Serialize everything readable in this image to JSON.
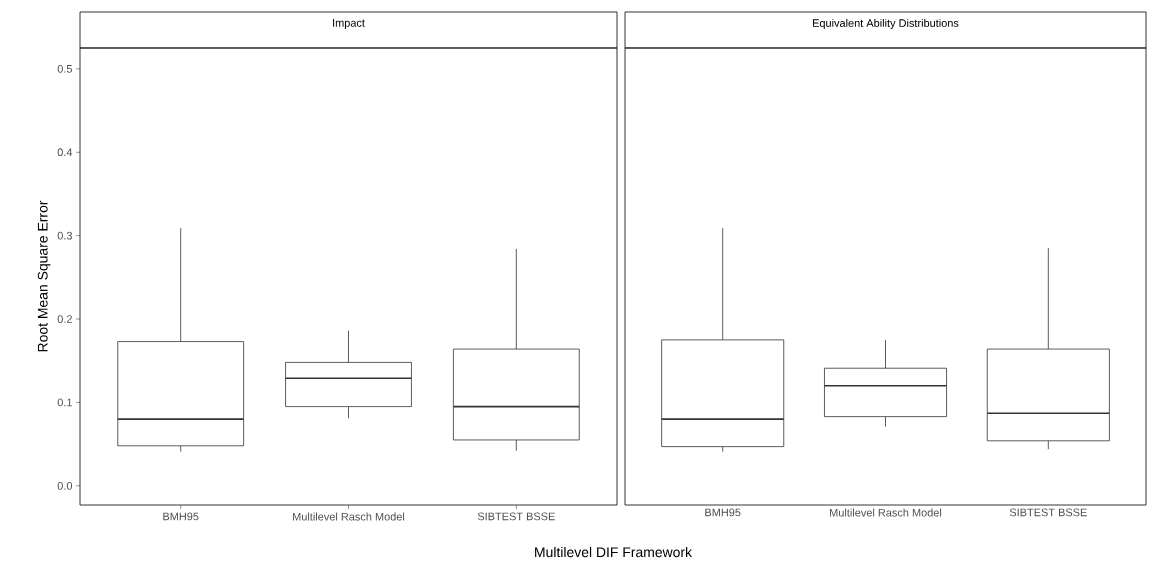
{
  "chart_data": [
    {
      "type": "box",
      "title": "Impact",
      "ylabel": "Root Mean Square Error",
      "xlabel": "Multilevel DIF Framework",
      "categories": [
        "BMH95",
        "Multilevel Rasch Model",
        "SIBTEST BSSE"
      ],
      "ylim": [
        -0.023,
        0.525
      ],
      "yticks": [
        {
          "value": 0,
          "label": "0.0"
        },
        0.1,
        0.2,
        0.3,
        0.4,
        0.5
      ],
      "grid": false,
      "series": [
        {
          "color": "#333333",
          "boxes": [
            {
              "low": 0.041,
              "q1": 0.048,
              "median": 0.08,
              "q3": 0.173,
              "high": 0.309
            },
            {
              "low": 0.081,
              "q1": 0.095,
              "median": 0.129,
              "q3": 0.148,
              "high": 0.186
            },
            {
              "low": 0.042,
              "q1": 0.055,
              "median": 0.095,
              "q3": 0.164,
              "high": 0.284
            }
          ]
        }
      ]
    },
    {
      "type": "box",
      "title": "Equivalent Ability Distributions",
      "categories": [
        "BMH95",
        "Multilevel Rasch Model",
        "SIBTEST BSSE"
      ],
      "ylim": [
        -0.023,
        0.525
      ],
      "grid": false,
      "tick_labels": "x",
      "series": [
        {
          "color": "#333333",
          "boxes": [
            {
              "low": 0.041,
              "q1": 0.047,
              "median": 0.08,
              "q3": 0.175,
              "high": 0.309
            },
            {
              "low": 0.071,
              "q1": 0.083,
              "median": 0.12,
              "q3": 0.141,
              "high": 0.175
            },
            {
              "low": 0.044,
              "q1": 0.054,
              "median": 0.087,
              "q3": 0.164,
              "high": 0.285
            }
          ]
        }
      ]
    }
  ]
}
